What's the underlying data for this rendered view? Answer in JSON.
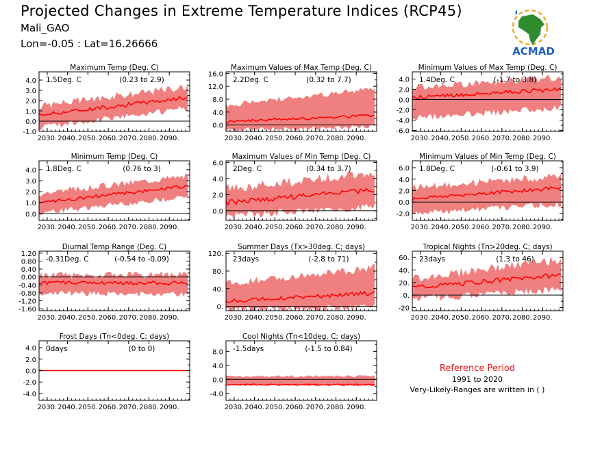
{
  "header": {
    "title": "Projected Changes in Extreme Temperature Indices (RCP45)",
    "station": "Mali_GAO",
    "coords": "Lon=-0.05 : Lat=16.26666",
    "logo_text": "ACMAD"
  },
  "reference": {
    "title": "Reference Period",
    "years": "1991 to 2020",
    "note": "Very-Likely-Ranges are written in ( )"
  },
  "colors": {
    "band": "#f08080",
    "line": "#ff0000",
    "zero": "#000000"
  },
  "chart_data": [
    {
      "type": "area",
      "title": "Maximum Temp (Deg. C)",
      "mean_label": "1.5Deg. C",
      "range_label": "(0.23 to 2.9)",
      "x_range": [
        2026,
        2100
      ],
      "xticks": [
        2030,
        2040,
        2050,
        2060,
        2070,
        2080,
        2090
      ],
      "xtick_labels": [
        "2030.",
        "2040.",
        "2050.",
        "2060.",
        "2070.",
        "2080.",
        "2090."
      ],
      "ylim": [
        -1.0,
        4.8
      ],
      "yticks": [
        -1.0,
        0.0,
        1.0,
        2.0,
        3.0,
        4.0
      ],
      "ytick_labels": [
        "-1.0",
        "0.0",
        "1.0",
        "2.0",
        "3.0",
        "4.0"
      ],
      "median_trend": [
        0.6,
        2.3
      ],
      "lower_trend": [
        -0.3,
        1.6
      ],
      "upper_trend": [
        1.4,
        3.3
      ],
      "variability": 0.25
    },
    {
      "type": "area",
      "title": "Maximum Values of Max Temp (Deg. C)",
      "mean_label": "2.2Deg. C",
      "range_label": "(0.32 to 7.7)",
      "x_range": [
        2026,
        2100
      ],
      "xticks": [
        2030,
        2040,
        2050,
        2060,
        2070,
        2080,
        2090
      ],
      "xtick_labels": [
        "2030.",
        "2040.",
        "2050.",
        "2060.",
        "2070.",
        "2080.",
        "2090."
      ],
      "ylim": [
        -2,
        16.5
      ],
      "yticks": [
        0,
        4,
        8,
        12,
        16
      ],
      "ytick_labels": [
        "0.0",
        "4.0",
        "8.0",
        "12.0",
        "16.0"
      ],
      "median_trend": [
        1.0,
        3.0
      ],
      "lower_trend": [
        -1.0,
        0.3
      ],
      "upper_trend": [
        6.0,
        11.0
      ],
      "variability": 0.6
    },
    {
      "type": "area",
      "title": "Minimum Values of Max Temp (Deg. C)",
      "mean_label": "1.4Deg. C",
      "range_label": "(-1.7 to 3.8)",
      "x_range": [
        2026,
        2100
      ],
      "xticks": [
        2030,
        2040,
        2050,
        2060,
        2070,
        2080,
        2090
      ],
      "xtick_labels": [
        "2030.",
        "2040.",
        "2050.",
        "2060.",
        "2070.",
        "2080.",
        "2090."
      ],
      "ylim": [
        -6.2,
        5.4
      ],
      "yticks": [
        -6,
        -4,
        -2,
        0,
        2,
        4
      ],
      "ytick_labels": [
        "-6.0",
        "-4.0",
        "-2.0",
        "0.0",
        "2.0",
        "4.0"
      ],
      "median_trend": [
        0.4,
        2.0
      ],
      "lower_trend": [
        -3.0,
        -1.0
      ],
      "upper_trend": [
        2.2,
        4.2
      ],
      "variability": 0.5
    },
    {
      "type": "area",
      "title": "Minimum Temp (Deg. C)",
      "mean_label": "1.8Deg. C",
      "range_label": "(0.76 to 3)",
      "x_range": [
        2026,
        2100
      ],
      "xticks": [
        2030,
        2040,
        2050,
        2060,
        2070,
        2080,
        2090
      ],
      "xtick_labels": [
        "2030.",
        "2040.",
        "2050.",
        "2060.",
        "2070.",
        "2080.",
        "2090."
      ],
      "ylim": [
        -0.6,
        4.8
      ],
      "yticks": [
        0.0,
        1.0,
        2.0,
        3.0,
        4.0
      ],
      "ytick_labels": [
        "0.0",
        "1.0",
        "2.0",
        "3.0",
        "4.0"
      ],
      "median_trend": [
        1.0,
        2.5
      ],
      "lower_trend": [
        0.3,
        1.8
      ],
      "upper_trend": [
        1.8,
        3.4
      ],
      "variability": 0.2
    },
    {
      "type": "area",
      "title": "Maximum Values of Min Temp (Deg. C)",
      "mean_label": "2Deg. C",
      "range_label": "(0.34 to 3.7)",
      "x_range": [
        2026,
        2100
      ],
      "xticks": [
        2030,
        2040,
        2050,
        2060,
        2070,
        2080,
        2090
      ],
      "xtick_labels": [
        "2030.",
        "2040.",
        "2050.",
        "2060.",
        "2070.",
        "2080.",
        "2090."
      ],
      "ylim": [
        -1.2,
        6.2
      ],
      "yticks": [
        0,
        2,
        4,
        6
      ],
      "ytick_labels": [
        "0.0",
        "2.0",
        "4.0",
        "6.0"
      ],
      "median_trend": [
        1.0,
        2.6
      ],
      "lower_trend": [
        -0.2,
        1.0
      ],
      "upper_trend": [
        2.6,
        4.6
      ],
      "variability": 0.4
    },
    {
      "type": "area",
      "title": "Minimum Values of Min Temp (Deg. C)",
      "mean_label": "1.8Deg. C",
      "range_label": "(-0.61 to 3.9)",
      "x_range": [
        2026,
        2100
      ],
      "xticks": [
        2030,
        2040,
        2050,
        2060,
        2070,
        2080,
        2090
      ],
      "xtick_labels": [
        "2030.",
        "2040.",
        "2050.",
        "2060.",
        "2070.",
        "2080.",
        "2090."
      ],
      "ylim": [
        -3.2,
        7.2
      ],
      "yticks": [
        -2,
        0,
        2,
        4,
        6
      ],
      "ytick_labels": [
        "-2.0",
        "0.0",
        "2.0",
        "4.0",
        "6.0"
      ],
      "median_trend": [
        0.6,
        2.5
      ],
      "lower_trend": [
        -1.5,
        0.2
      ],
      "upper_trend": [
        2.4,
        4.4
      ],
      "variability": 0.45
    },
    {
      "type": "area",
      "title": "Diurnal Temp Range (Deg. C)",
      "mean_label": "-0.31Deg. C",
      "range_label": "(-0.54 to -0.09)",
      "x_range": [
        2026,
        2100
      ],
      "xticks": [
        2030,
        2040,
        2050,
        2060,
        2070,
        2080,
        2090
      ],
      "xtick_labels": [
        "2030.",
        "2040.",
        "2050.",
        "2060.",
        "2070.",
        "2080.",
        "2090."
      ],
      "ylim": [
        -1.7,
        1.3
      ],
      "yticks": [
        -1.6,
        -1.2,
        -0.8,
        -0.4,
        0.0,
        0.4,
        0.8,
        1.2
      ],
      "ytick_labels": [
        "-1.60",
        "-1.20",
        "-0.80",
        "-0.40",
        "0.00",
        "0.40",
        "0.80",
        "1.20"
      ],
      "median_trend": [
        -0.3,
        -0.3
      ],
      "lower_trend": [
        -0.65,
        -0.75
      ],
      "upper_trend": [
        0.05,
        0.1
      ],
      "variability": 0.12
    },
    {
      "type": "area",
      "title": "Summer Days (Tx>30deg. C; days)",
      "mean_label": "23days",
      "range_label": "(-2.8 to 71)",
      "x_range": [
        2026,
        2100
      ],
      "xticks": [
        2030,
        2040,
        2050,
        2060,
        2070,
        2080,
        2090
      ],
      "xtick_labels": [
        "2030.",
        "2040.",
        "2050.",
        "2060.",
        "2070.",
        "2080.",
        "2090."
      ],
      "ylim": [
        -10,
        125
      ],
      "yticks": [
        0,
        40,
        80,
        120
      ],
      "ytick_labels": [
        "0.",
        "40.",
        "80.",
        "120."
      ],
      "median_trend": [
        12,
        30
      ],
      "lower_trend": [
        0,
        5
      ],
      "upper_trend": [
        50,
        85
      ],
      "variability": 6
    },
    {
      "type": "area",
      "title": "Tropical Nights (Tn>20deg. C; days)",
      "mean_label": "23days",
      "range_label": "(1.3 to 46)",
      "x_range": [
        2026,
        2100
      ],
      "xticks": [
        2030,
        2040,
        2050,
        2060,
        2070,
        2080,
        2090
      ],
      "xtick_labels": [
        "2030.",
        "2040.",
        "2050.",
        "2060.",
        "2070.",
        "2080.",
        "2090."
      ],
      "ylim": [
        -25,
        70
      ],
      "yticks": [
        -20,
        0,
        20,
        40,
        60
      ],
      "ytick_labels": [
        "-20",
        "0.",
        "20.",
        "40.",
        "60."
      ],
      "median_trend": [
        12,
        32
      ],
      "lower_trend": [
        0,
        15
      ],
      "upper_trend": [
        25,
        55
      ],
      "variability": 5
    },
    {
      "type": "area",
      "title": "Frost Days (Tn<0deg. C; days)",
      "mean_label": "0days",
      "range_label": "(0 to 0)",
      "x_range": [
        2026,
        2100
      ],
      "xticks": [
        2030,
        2040,
        2050,
        2060,
        2070,
        2080,
        2090
      ],
      "xtick_labels": [
        "2030.",
        "2040.",
        "2050.",
        "2060.",
        "2070.",
        "2080.",
        "2090."
      ],
      "ylim": [
        -5.2,
        5.2
      ],
      "yticks": [
        -4,
        -2,
        0,
        2,
        4
      ],
      "ytick_labels": [
        "-4.0",
        "-2.0",
        "0.0",
        "2.0",
        "4.0"
      ],
      "median_trend": [
        0,
        0
      ],
      "lower_trend": [
        0,
        0
      ],
      "upper_trend": [
        0,
        0
      ],
      "variability": 0
    },
    {
      "type": "area",
      "title": "Cool Nights (Tn<10deg. C; days)",
      "mean_label": "-1.5days",
      "range_label": "(-1.5 to 0.84)",
      "x_range": [
        2026,
        2100
      ],
      "xticks": [
        2030,
        2040,
        2050,
        2060,
        2070,
        2080,
        2090
      ],
      "xtick_labels": [
        "2030.",
        "2040.",
        "2050.",
        "2060.",
        "2070.",
        "2080.",
        "2090."
      ],
      "ylim": [
        -6,
        11
      ],
      "yticks": [
        -4,
        0,
        4,
        8
      ],
      "ytick_labels": [
        "-4.0",
        "0.0",
        "4.0",
        "8.0"
      ],
      "median_trend": [
        -1.5,
        -1.5
      ],
      "lower_trend": [
        -1.5,
        -1.5
      ],
      "upper_trend": [
        0.84,
        0.84
      ],
      "variability": 0.2
    }
  ]
}
